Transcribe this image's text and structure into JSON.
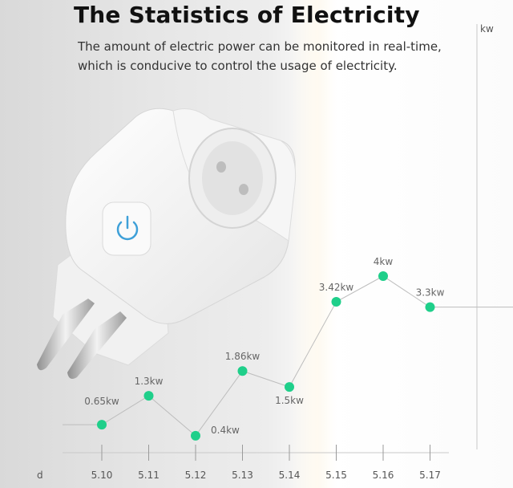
{
  "header": {
    "title": "The Statistics of Electricity",
    "subtitle_line1": "The amount of electric power can be monitored in real-time,",
    "subtitle_line2": "which is conducive to control the usage of electricity."
  },
  "colors": {
    "point": "#1fcf8a",
    "line": "#bdbdbd",
    "axis": "#c9c9c9",
    "power_icon": "#3ea0d8"
  },
  "icons": {
    "power": "power-icon"
  },
  "chart_data": {
    "type": "line",
    "xlabel": "d",
    "ylabel": "kw",
    "categories": [
      "5.10",
      "5.11",
      "5.12",
      "5.13",
      "5.14",
      "5.15",
      "5.16",
      "5.17"
    ],
    "values": [
      0.65,
      1.3,
      0.4,
      1.86,
      1.5,
      3.42,
      4,
      3.3
    ],
    "data_labels": [
      "0.65kw",
      "1.3kw",
      "0.4kw",
      "1.86kw",
      "1.5kw",
      "3.42kw",
      "4kw",
      "3.3kw"
    ],
    "ylim": [
      0,
      4
    ],
    "grid": false,
    "legend": "none"
  }
}
